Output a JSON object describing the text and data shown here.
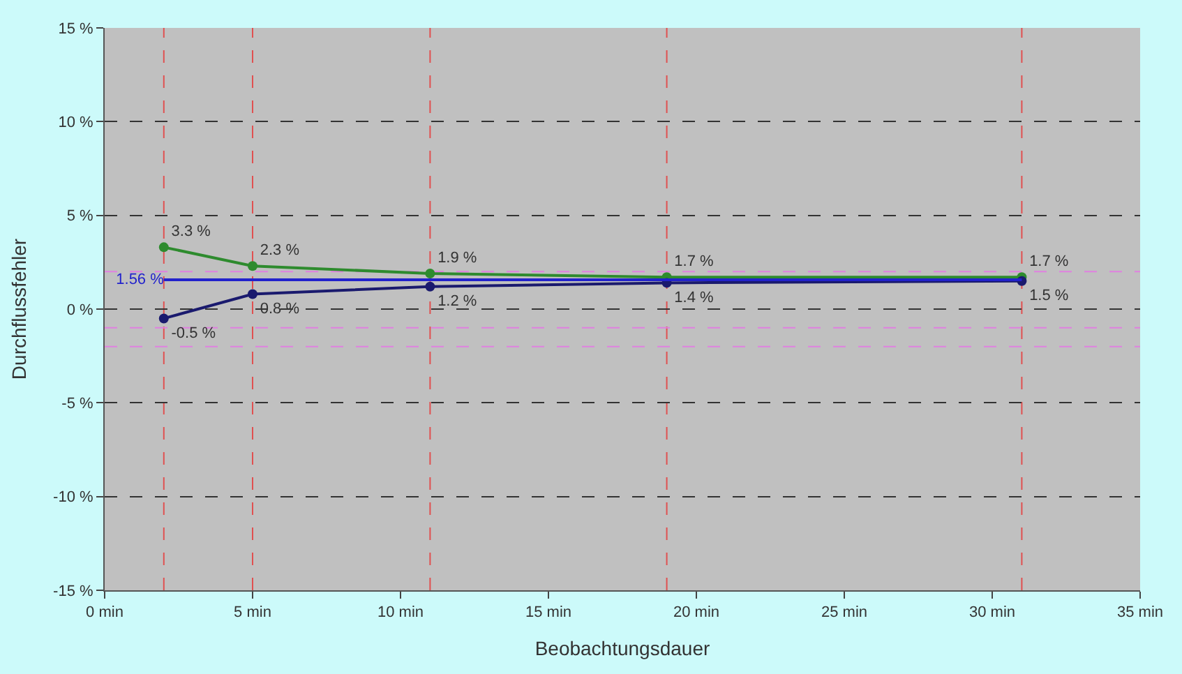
{
  "chart_data": {
    "type": "line",
    "xlabel": "Beobachtungsdauer",
    "ylabel": "Durchflussfehler",
    "x": [
      2,
      5,
      11,
      19,
      31
    ],
    "xlim": [
      0,
      35
    ],
    "xticks": [
      {
        "value": 0,
        "label": "0 min"
      },
      {
        "value": 5,
        "label": "5 min"
      },
      {
        "value": 10,
        "label": "10 min"
      },
      {
        "value": 15,
        "label": "15 min"
      },
      {
        "value": 20,
        "label": "20 min"
      },
      {
        "value": 25,
        "label": "25 min"
      },
      {
        "value": 30,
        "label": "30 min"
      },
      {
        "value": 35,
        "label": "35 min"
      }
    ],
    "ylim": [
      -15,
      15
    ],
    "yticks": [
      {
        "value": -15,
        "label": "-15 %"
      },
      {
        "value": -10,
        "label": "-10 %"
      },
      {
        "value": -5,
        "label": "-5 %"
      },
      {
        "value": 0,
        "label": "0 %"
      },
      {
        "value": 5,
        "label": "5 %"
      },
      {
        "value": 10,
        "label": "10 %"
      },
      {
        "value": 15,
        "label": "15 %"
      }
    ],
    "grid": "y",
    "marker": "circle",
    "line_style": "solid",
    "series": [
      {
        "color": "#2e8b2e",
        "values": [
          3.3,
          2.3,
          1.9,
          1.7,
          1.7
        ],
        "value_labels": [
          "3.3 %",
          "2.3 %",
          "1.9 %",
          "1.7 %",
          "1.7 %"
        ]
      },
      {
        "color": "#1a1a6e",
        "values": [
          -0.5,
          0.8,
          1.2,
          1.4,
          1.5
        ],
        "value_labels": [
          "-0.5 %",
          "0.8 %",
          "1.2 %",
          "1.4 %",
          "1.5 %"
        ]
      },
      {
        "color": "#2222cc",
        "x": [
          2,
          31
        ],
        "values": [
          1.56,
          1.56
        ],
        "marker": "none",
        "value_labels": [
          "1.56 %",
          null
        ]
      }
    ],
    "ref_lines": [
      {
        "axis": "x",
        "value": 2,
        "color": "#e05050",
        "line_style": "dashed"
      },
      {
        "axis": "x",
        "value": 5,
        "color": "#e05050",
        "line_style": "dashed"
      },
      {
        "axis": "x",
        "value": 11,
        "color": "#e05050",
        "line_style": "dashed"
      },
      {
        "axis": "x",
        "value": 19,
        "color": "#e05050",
        "line_style": "dashed"
      },
      {
        "axis": "x",
        "value": 31,
        "color": "#e05050",
        "line_style": "dashed"
      },
      {
        "axis": "y",
        "value": 2,
        "color": "#e080e0",
        "line_style": "dashed"
      },
      {
        "axis": "y",
        "value": -1,
        "color": "#e080e0",
        "line_style": "dashed"
      },
      {
        "axis": "y",
        "value": -2,
        "color": "#e080e0",
        "line_style": "dashed"
      }
    ]
  }
}
